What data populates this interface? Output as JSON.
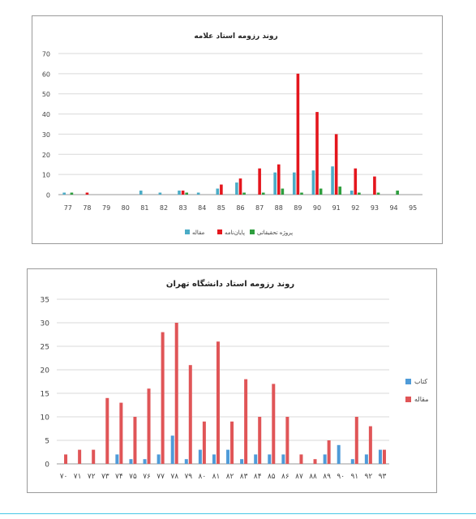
{
  "colors": {
    "article": "#4bacc6",
    "thesis": "#e4161d",
    "research": "#2e9e3e",
    "book": "#4f9bd8",
    "article2": "#e05557"
  },
  "chart_data": [
    {
      "type": "bar",
      "title": "روند رزومه استاد علامه",
      "categories": [
        "77",
        "78",
        "79",
        "80",
        "81",
        "82",
        "83",
        "84",
        "85",
        "86",
        "87",
        "88",
        "89",
        "90",
        "91",
        "92",
        "93",
        "94",
        "95"
      ],
      "ylim": [
        0,
        70
      ],
      "yticks": [
        "0",
        "10",
        "20",
        "30",
        "40",
        "50",
        "60",
        "70"
      ],
      "grid": true,
      "legend": "bottom",
      "series": [
        {
          "name": "مقاله",
          "color_key": "article",
          "values": [
            1,
            0,
            0,
            0,
            2,
            1,
            2,
            1,
            3,
            6,
            0,
            11,
            11,
            12,
            14,
            2,
            0,
            0,
            0
          ]
        },
        {
          "name": "پایان‌نامه",
          "color_key": "thesis",
          "values": [
            0,
            1,
            0,
            0,
            0,
            0,
            2,
            0,
            5,
            8,
            13,
            15,
            60,
            41,
            30,
            13,
            9,
            0,
            0
          ]
        },
        {
          "name": "پروژه تحقیقاتی",
          "color_key": "research",
          "values": [
            1,
            0,
            0,
            0,
            0,
            0,
            1,
            0,
            0,
            1,
            1,
            3,
            1,
            3,
            4,
            1,
            1,
            2,
            0
          ]
        }
      ]
    },
    {
      "type": "bar",
      "title": "روند رزومه استاد دانشگاه تهران",
      "categories": [
        "۷۰",
        "۷۱",
        "۷۲",
        "۷۳",
        "۷۴",
        "۷۵",
        "۷۶",
        "۷۷",
        "۷۸",
        "۷۹",
        "۸۰",
        "۸۱",
        "۸۲",
        "۸۳",
        "۸۴",
        "۸۵",
        "۸۶",
        "۸۷",
        "۸۸",
        "۸۹",
        "۹۰",
        "۹۱",
        "۹۲",
        "۹۳"
      ],
      "ylim": [
        0,
        35
      ],
      "yticks": [
        "0",
        "5",
        "10",
        "15",
        "20",
        "25",
        "30",
        "35"
      ],
      "grid": true,
      "legend": "right",
      "series": [
        {
          "name": "کتاب",
          "color_key": "book",
          "values": [
            0,
            0,
            0,
            0,
            2,
            1,
            1,
            2,
            6,
            1,
            3,
            2,
            3,
            1,
            2,
            2,
            2,
            0,
            0,
            2,
            4,
            1,
            2,
            3
          ]
        },
        {
          "name": "مقاله",
          "color_key": "article2",
          "values": [
            2,
            3,
            3,
            14,
            13,
            10,
            16,
            28,
            30,
            21,
            9,
            26,
            9,
            18,
            10,
            17,
            10,
            2,
            1,
            5,
            0,
            10,
            8,
            3
          ]
        }
      ]
    }
  ]
}
